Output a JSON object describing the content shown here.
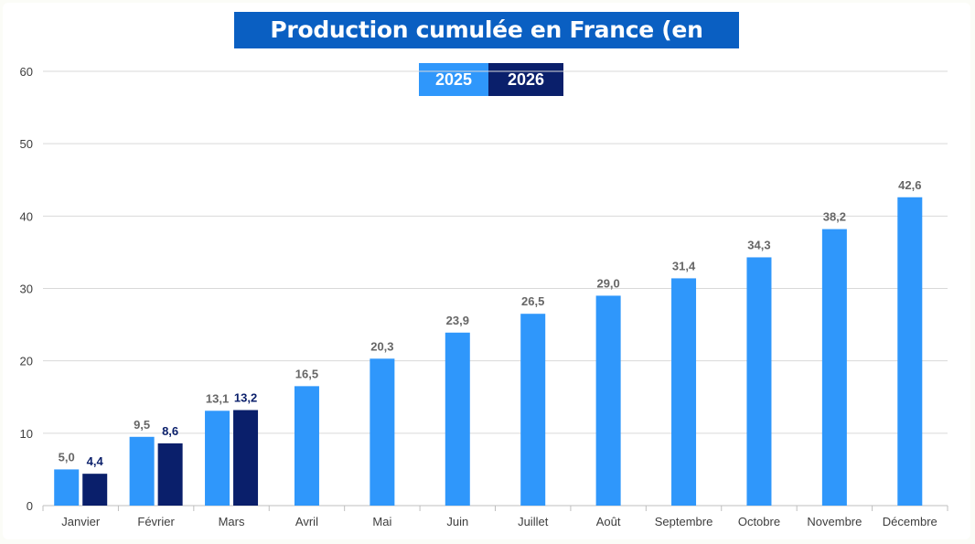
{
  "chart_data": {
    "type": "bar",
    "title": "Production cumulée en France (en TWh)",
    "categories": [
      "Janvier",
      "Février",
      "Mars",
      "Avril",
      "Mai",
      "Juin",
      "Juillet",
      "Août",
      "Septembre",
      "Octobre",
      "Novembre",
      "Décembre"
    ],
    "series": [
      {
        "name": "2025",
        "color": "#2f97fb",
        "label_color": "#666666",
        "values": [
          5.0,
          9.5,
          13.1,
          16.5,
          20.3,
          23.9,
          26.5,
          29.0,
          31.4,
          34.3,
          38.2,
          42.6
        ],
        "labels": [
          "5,0",
          "9,5",
          "13,1",
          "16,5",
          "20,3",
          "23,9",
          "26,5",
          "29,0",
          "31,4",
          "34,3",
          "38,2",
          "42,6"
        ]
      },
      {
        "name": "2026",
        "color": "#0a1f6b",
        "label_color": "#0a1f6b",
        "values": [
          4.4,
          8.6,
          13.2,
          null,
          null,
          null,
          null,
          null,
          null,
          null,
          null,
          null
        ],
        "labels": [
          "4,4",
          "8,6",
          "13,2",
          "",
          "",
          "",
          "",
          "",
          "",
          "",
          "",
          ""
        ]
      }
    ],
    "yticks": [
      "0",
      "10",
      "20",
      "30",
      "40",
      "50",
      "60"
    ],
    "ylim": [
      0,
      60
    ],
    "xlabel": "",
    "ylabel": "",
    "grid": true,
    "legend_position": "top-center"
  }
}
